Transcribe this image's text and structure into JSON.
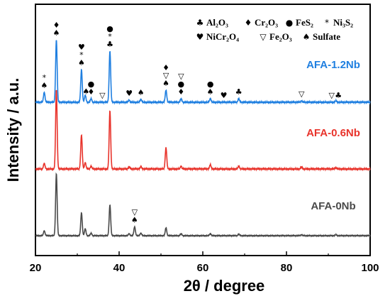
{
  "chart_data": {
    "type": "line",
    "xlabel": "2θ / degree",
    "ylabel": "Intensity / a.u.",
    "xlim": [
      20,
      100
    ],
    "x_ticks": [
      "20",
      "40",
      "60",
      "80",
      "100"
    ],
    "grid": false,
    "legend": {
      "placement": "top-right",
      "entries": [
        {
          "symbol": "♣",
          "label": "Al₂O₃"
        },
        {
          "symbol": "♦",
          "label": "Cr₂O₃"
        },
        {
          "symbol": "●",
          "label": "FeS₂"
        },
        {
          "symbol": "*",
          "label": "Ni₃S₂"
        },
        {
          "symbol": "♥",
          "label": "NiCr₂O₄"
        },
        {
          "symbol": "▽",
          "label": "Fe₂O₃"
        },
        {
          "symbol": "♠",
          "label": "Sulfate"
        }
      ]
    },
    "series": [
      {
        "name": "AFA-1.2Nb",
        "color": "#1f7fe0",
        "peaks": [
          {
            "x": 22.1,
            "h": 0.14
          },
          {
            "x": 25.0,
            "h": 0.88
          },
          {
            "x": 31.0,
            "h": 0.46
          },
          {
            "x": 31.9,
            "h": 0.1
          },
          {
            "x": 33.3,
            "h": 0.05
          },
          {
            "x": 37.8,
            "h": 0.72
          },
          {
            "x": 42.4,
            "h": 0.03
          },
          {
            "x": 45.2,
            "h": 0.04
          },
          {
            "x": 51.2,
            "h": 0.17
          },
          {
            "x": 54.8,
            "h": 0.05
          },
          {
            "x": 61.8,
            "h": 0.05
          },
          {
            "x": 68.6,
            "h": 0.05
          },
          {
            "x": 83.6,
            "h": 0.02
          },
          {
            "x": 91.8,
            "h": 0.02
          }
        ]
      },
      {
        "name": "AFA-0.6Nb",
        "color": "#e8332b",
        "peaks": [
          {
            "x": 22.1,
            "h": 0.08
          },
          {
            "x": 25.0,
            "h": 1.12
          },
          {
            "x": 31.0,
            "h": 0.48
          },
          {
            "x": 31.9,
            "h": 0.09
          },
          {
            "x": 33.3,
            "h": 0.04
          },
          {
            "x": 37.8,
            "h": 0.82
          },
          {
            "x": 42.4,
            "h": 0.03
          },
          {
            "x": 45.2,
            "h": 0.03
          },
          {
            "x": 51.2,
            "h": 0.3
          },
          {
            "x": 54.8,
            "h": 0.04
          },
          {
            "x": 61.8,
            "h": 0.06
          },
          {
            "x": 68.6,
            "h": 0.04
          },
          {
            "x": 83.6,
            "h": 0.03
          },
          {
            "x": 91.8,
            "h": 0.02
          }
        ]
      },
      {
        "name": "AFA-0Nb",
        "color": "#4a4a4a",
        "peaks": [
          {
            "x": 22.1,
            "h": 0.1
          },
          {
            "x": 25.0,
            "h": 1.25
          },
          {
            "x": 31.0,
            "h": 0.46
          },
          {
            "x": 31.9,
            "h": 0.14
          },
          {
            "x": 33.3,
            "h": 0.05
          },
          {
            "x": 37.8,
            "h": 0.62
          },
          {
            "x": 42.4,
            "h": 0.04
          },
          {
            "x": 43.7,
            "h": 0.18
          },
          {
            "x": 45.2,
            "h": 0.05
          },
          {
            "x": 51.2,
            "h": 0.16
          },
          {
            "x": 54.8,
            "h": 0.04
          },
          {
            "x": 61.8,
            "h": 0.04
          },
          {
            "x": 68.6,
            "h": 0.03
          },
          {
            "x": 83.6,
            "h": 0.02
          },
          {
            "x": 91.8,
            "h": 0.02
          }
        ]
      }
    ],
    "annotations": [
      {
        "x": 22.1,
        "series": "AFA-1.2Nb",
        "symbols": [
          "*",
          "♠"
        ]
      },
      {
        "x": 25.0,
        "series": "AFA-1.2Nb",
        "symbols": [
          "♦",
          "♠"
        ]
      },
      {
        "x": 31.0,
        "series": "AFA-1.2Nb",
        "symbols": [
          "♥",
          "*",
          "♠"
        ]
      },
      {
        "x": 32.1,
        "series": "AFA-1.2Nb",
        "symbols": [
          "♠"
        ]
      },
      {
        "x": 33.3,
        "series": "AFA-1.2Nb",
        "symbols": [
          "●",
          "♦"
        ]
      },
      {
        "x": 36.0,
        "series": "AFA-1.2Nb",
        "symbols": [
          "▽"
        ]
      },
      {
        "x": 37.8,
        "series": "AFA-1.2Nb",
        "symbols": [
          "●",
          "*",
          "♣"
        ]
      },
      {
        "x": 42.4,
        "series": "AFA-1.2Nb",
        "symbols": [
          "♥"
        ]
      },
      {
        "x": 45.2,
        "series": "AFA-1.2Nb",
        "symbols": [
          "♠"
        ]
      },
      {
        "x": 51.2,
        "series": "AFA-1.2Nb",
        "symbols": [
          "♦",
          "▽",
          "♠"
        ]
      },
      {
        "x": 54.8,
        "series": "AFA-1.2Nb",
        "symbols": [
          "▽",
          "●",
          "♦"
        ]
      },
      {
        "x": 61.8,
        "series": "AFA-1.2Nb",
        "symbols": [
          "●",
          "♠"
        ]
      },
      {
        "x": 65.0,
        "series": "AFA-1.2Nb",
        "symbols": [
          "♥"
        ]
      },
      {
        "x": 68.6,
        "series": "AFA-1.2Nb",
        "symbols": [
          "♣"
        ]
      },
      {
        "x": 83.6,
        "series": "AFA-1.2Nb",
        "symbols": [
          "▽"
        ]
      },
      {
        "x": 90.8,
        "series": "AFA-1.2Nb",
        "symbols": [
          "▽"
        ]
      },
      {
        "x": 92.4,
        "series": "AFA-1.2Nb",
        "symbols": [
          "♣"
        ]
      },
      {
        "x": 43.7,
        "series": "AFA-0Nb",
        "symbols": [
          "▽",
          "♠"
        ]
      }
    ]
  }
}
